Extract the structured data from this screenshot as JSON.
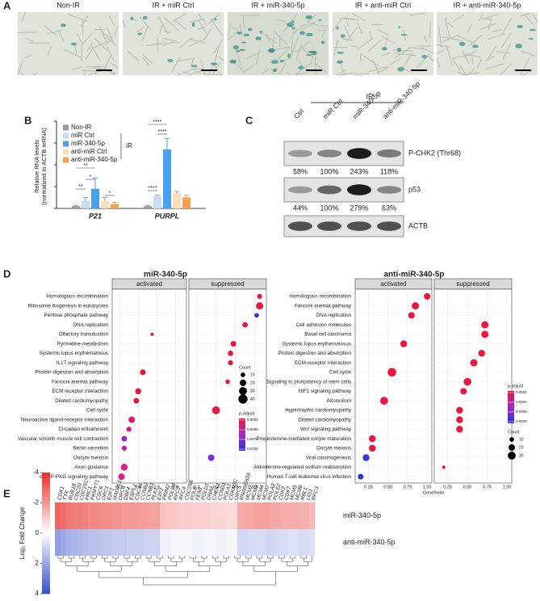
{
  "panels": [
    "A",
    "B",
    "C",
    "D",
    "E"
  ],
  "images": {
    "titles": [
      "Non-IR",
      "IR + miR Ctrl",
      "IR + miR-340-5p",
      "IR + anti-miR Ctrl",
      "IR + anti-miR-340-5p"
    ]
  },
  "blot": {
    "group": "IR",
    "lanes": [
      "Ctrl",
      "miR Ctrl",
      "miR-340-5p",
      "anti-miR-340-5p"
    ],
    "rows": [
      {
        "name": "P-CHK2 (Thr68)",
        "quant": [
          "58%",
          "100%",
          "243%",
          "118%"
        ]
      },
      {
        "name": "p53",
        "quant": [
          "44%",
          "100%",
          "279%",
          "63%"
        ]
      },
      {
        "name": "ACTB"
      }
    ]
  },
  "chart_data": [
    {
      "type": "bar",
      "ylabel": [
        "Relative RNA levels",
        "(normalized to ACTB mRNA)"
      ],
      "categories": [
        "P21",
        "PURPL"
      ],
      "legend_group": "IR",
      "series": [
        {
          "name": "Non-IR",
          "color": "#9a9a9a",
          "values": [
            1,
            1
          ],
          "errors": [
            0.3,
            0.3
          ]
        },
        {
          "name": "miR Ctrl",
          "color": "#c7ddf4",
          "values": [
            3.5,
            5.5
          ],
          "errors": [
            1.5,
            0.5
          ]
        },
        {
          "name": "miR-340-5p",
          "color": "#47a1ee",
          "values": [
            9,
            27
          ],
          "errors": [
            5,
            5
          ]
        },
        {
          "name": "anti-miR Ctrl",
          "color": "#fbdfb9",
          "values": [
            3.5,
            7
          ],
          "errors": [
            1.5,
            0.8
          ]
        },
        {
          "name": "anti-miR-340-5p",
          "color": "#f0a24e",
          "values": [
            2,
            5
          ],
          "errors": [
            0.8,
            1
          ]
        }
      ],
      "annotations": [
        "**",
        "*",
        "**",
        "*",
        "****",
        "****",
        "****"
      ],
      "ylim": [
        0,
        40
      ],
      "yticks": [
        0,
        10,
        20,
        30,
        40
      ]
    },
    {
      "type": "dot",
      "title": "miR-340-5p",
      "facets": [
        "activated",
        "suppressed"
      ],
      "categories": [
        "Homologous recombination",
        "Ribosome biogenesis in eukaryotes",
        "Pentose phosphate pathway",
        "DNA replication",
        "Olfactory transduction",
        "Pyrimidine metabolism",
        "Systemic lupus erythematosus",
        "IL17 signaling pathway",
        "Protein digestion and absorption",
        "Fanconi anemia pathway",
        "ECM receptor interaction",
        "Dilated cardiomyopathy",
        "Cell cycle",
        "Neuroactive ligand-receptor interaction",
        "Circadian entrainment",
        "Vascular smooth muscle cell contraction",
        "Renin secretion",
        "Oocyte meiosis",
        "Axon guidance",
        "cGMP-PKG signaling pathway"
      ],
      "series": [
        {
          "name": "activated",
          "values": [
            null,
            null,
            null,
            null,
            0.55,
            null,
            null,
            null,
            0.45,
            null,
            0.4,
            0.38,
            null,
            0.33,
            0.3,
            0.25,
            0.25,
            null,
            0.25,
            0.22
          ],
          "sizes": [
            null,
            null,
            null,
            null,
            5,
            null,
            null,
            null,
            16,
            null,
            17,
            15,
            null,
            20,
            12,
            15,
            12,
            null,
            22,
            20
          ],
          "colors": [
            null,
            null,
            null,
            null,
            "#e8173f",
            null,
            null,
            null,
            "#e8173f",
            null,
            "#e8173f",
            "#e8173f",
            null,
            "#e0186a",
            "#d01c8a",
            "#9a2cc0",
            "#c4209c",
            null,
            "#e0208a",
            "#d8208c"
          ]
        },
        {
          "name": "suppressed",
          "values": [
            0.85,
            0.85,
            0.82,
            0.7,
            null,
            0.58,
            0.55,
            0.55,
            null,
            0.52,
            null,
            null,
            0.4,
            null,
            null,
            null,
            null,
            0.35,
            null,
            null
          ],
          "sizes": [
            12,
            25,
            10,
            14,
            null,
            15,
            14,
            12,
            null,
            10,
            null,
            null,
            30,
            null,
            null,
            null,
            null,
            20,
            null,
            null
          ],
          "colors": [
            "#e8173f",
            "#e8173f",
            "#3030d0",
            "#e8173f",
            null,
            "#e8173f",
            "#e8173f",
            "#e8173f",
            null,
            "#e8173f",
            null,
            null,
            "#e8173f",
            null,
            null,
            null,
            null,
            "#7a30c8",
            null,
            null
          ]
        }
      ],
      "xlim": [
        0.12,
        0.92
      ],
      "xticks": [
        0.2,
        0.4,
        0.6,
        0.8
      ],
      "size_legend": {
        "title": "Count",
        "ticks": [
          10,
          20,
          30,
          40
        ]
      },
      "color_legend": {
        "title": "p.adjust",
        "ticks": [
          {
            "value": 0.0025,
            "label": "0.0025"
          },
          {
            "value": 0.005,
            "label": "0.0050"
          },
          {
            "value": 0.0075,
            "label": "0.0075"
          },
          {
            "value": 0.01,
            "label": "0.0100"
          }
        ]
      }
    },
    {
      "type": "dot",
      "title": "anti-miR-340-5p",
      "facets": [
        "activated",
        "suppressed"
      ],
      "categories": [
        "Homologous recombination",
        "Fanconi anemia pathway",
        "DNA replication",
        "Cell adhesion molecules",
        "Basal cell carcinoma",
        "Systemic lupus erythematosus",
        "Protein digestion and absorption",
        "ECM-receptor interaction",
        "Cell cycle",
        "Signaling to pluripotency of stem cells",
        "HIF1 signaling pathway",
        "Alcoholism",
        "Hypertrophic cardiomyopathy",
        "Dilated cardiomyopathy",
        "Wnt signaling pathway",
        "Progesterone-mediated oocyte maturation",
        "Oocyte meiosis",
        "Viral carcinogenesis",
        "Aldosterone-regulated sodium reabsorption",
        "Human T-cell leukemia virus infection"
      ],
      "series": [
        {
          "name": "activated",
          "values": [
            1.0,
            0.85,
            0.8,
            null,
            null,
            0.7,
            null,
            null,
            0.55,
            null,
            null,
            0.45,
            null,
            null,
            null,
            0.3,
            0.3,
            0.22,
            null,
            0.15
          ],
          "sizes": [
            20,
            25,
            20,
            null,
            null,
            22,
            null,
            null,
            35,
            null,
            null,
            30,
            null,
            null,
            null,
            22,
            22,
            22,
            null,
            15
          ],
          "colors": [
            "#e8173f",
            "#e8173f",
            "#e8173f",
            null,
            null,
            "#e8173f",
            null,
            null,
            "#e8173f",
            null,
            null,
            "#e8173f",
            null,
            null,
            null,
            "#e8173f",
            "#e8173f",
            "#3a3ad8",
            null,
            "#3030e0"
          ]
        },
        {
          "name": "suppressed",
          "values": [
            null,
            null,
            null,
            0.72,
            0.72,
            null,
            0.68,
            0.58,
            null,
            0.5,
            0.45,
            null,
            0.4,
            0.4,
            0.4,
            null,
            null,
            null,
            0.2,
            null
          ],
          "sizes": [
            null,
            null,
            null,
            25,
            25,
            null,
            22,
            25,
            null,
            28,
            20,
            null,
            22,
            22,
            22,
            null,
            null,
            null,
            5,
            null
          ],
          "colors": [
            null,
            null,
            null,
            "#e8173f",
            "#e8173f",
            null,
            "#e8173f",
            "#e8173f",
            null,
            "#e8173f",
            "#e8173f",
            null,
            "#e8173f",
            "#e8173f",
            "#e8173f",
            null,
            null,
            null,
            "#e8173f",
            null
          ]
        }
      ],
      "xlim": [
        0.08,
        1.06
      ],
      "xticks": [
        0.25,
        {
          "value": 0.5,
          "label": "0.50"
        },
        0.75,
        {
          "value": 1,
          "label": "1.00"
        }
      ],
      "xlabel": "GeneRatio",
      "size_legend": {
        "title": "Count",
        "ticks": [
          10,
          20,
          30
        ]
      },
      "color_legend": {
        "title": "p.adjust",
        "ticks": [
          0.0002,
          0.0004,
          0.0006,
          0.0008
        ]
      }
    },
    {
      "type": "heatmap",
      "categories": [
        "CDK1",
        "TTK",
        "BUB1B",
        "CDC20",
        "CDC25C",
        "PRC1",
        "PKMYT1",
        "CDC6",
        "ORC1",
        "E2F1",
        "MAD2L1",
        "ORC6",
        "DBF4",
        "ESPL1",
        "CDC45",
        "CCNB2",
        "CCNB1",
        "PLK1",
        "E2F2",
        "PRIM2",
        "POLD3",
        "RFC2",
        "RFC4",
        "CDC25A",
        "POLE",
        "FEN1",
        "POLD1",
        "DNA2",
        "CHEK1",
        "CCND1",
        "POLA1",
        "CDKN2C",
        "ORC5",
        "RNASEH2A",
        "MCM2",
        "MCM3",
        "MCM4",
        "MCM7",
        "POLA2",
        "POLE2",
        "CDK2",
        "CDK7",
        "MCM5",
        "MCM6",
        "RBL1",
        "LIG1",
        "RFC3"
      ],
      "series": [
        {
          "name": "miR-340-5p",
          "values": [
            -3,
            -2.8,
            -2.6,
            -2.5,
            -2.5,
            -2.4,
            -2.3,
            -2.3,
            -2.2,
            -2.2,
            -2.1,
            -2.1,
            -2,
            -2,
            -2,
            -1.9,
            -1.9,
            -1.8,
            -1.8,
            -1.2,
            -1.1,
            -1.1,
            -1,
            -1,
            -1,
            -0.9,
            -0.9,
            -0.9,
            -0.8,
            -0.8,
            -0.8,
            -0.7,
            -0.7,
            -1.6,
            -1.7,
            -1.7,
            -1.8,
            -1.8,
            -1.8,
            -1.7,
            -1.7,
            -1.6,
            -1.6,
            -1.6,
            -1.5,
            -1.5,
            -1.4
          ]
        },
        {
          "name": "anti-miR-340-5p",
          "values": [
            2.2,
            2,
            1.8,
            1.7,
            1.6,
            1.5,
            1.4,
            1.4,
            1.3,
            1.3,
            1.2,
            1.2,
            1.2,
            1.1,
            1.1,
            1.1,
            1,
            1,
            1,
            0.3,
            0.3,
            0.2,
            0.2,
            0.2,
            0.2,
            0.3,
            0.3,
            0.2,
            0.2,
            0.3,
            0.3,
            0.2,
            0.2,
            0.9,
            0.9,
            0.8,
            0.8,
            0.8,
            0.9,
            0.9,
            0.8,
            0.8,
            0.7,
            0.7,
            0.8,
            0.8,
            0.7
          ]
        }
      ],
      "colorbar_label": "Log₂ Fold Change",
      "clim": [
        -4,
        4
      ],
      "cticks": [
        -4,
        -2,
        0,
        2,
        4
      ],
      "colors": [
        "#e8302a",
        "#ffffff",
        "#3550c8"
      ]
    }
  ]
}
